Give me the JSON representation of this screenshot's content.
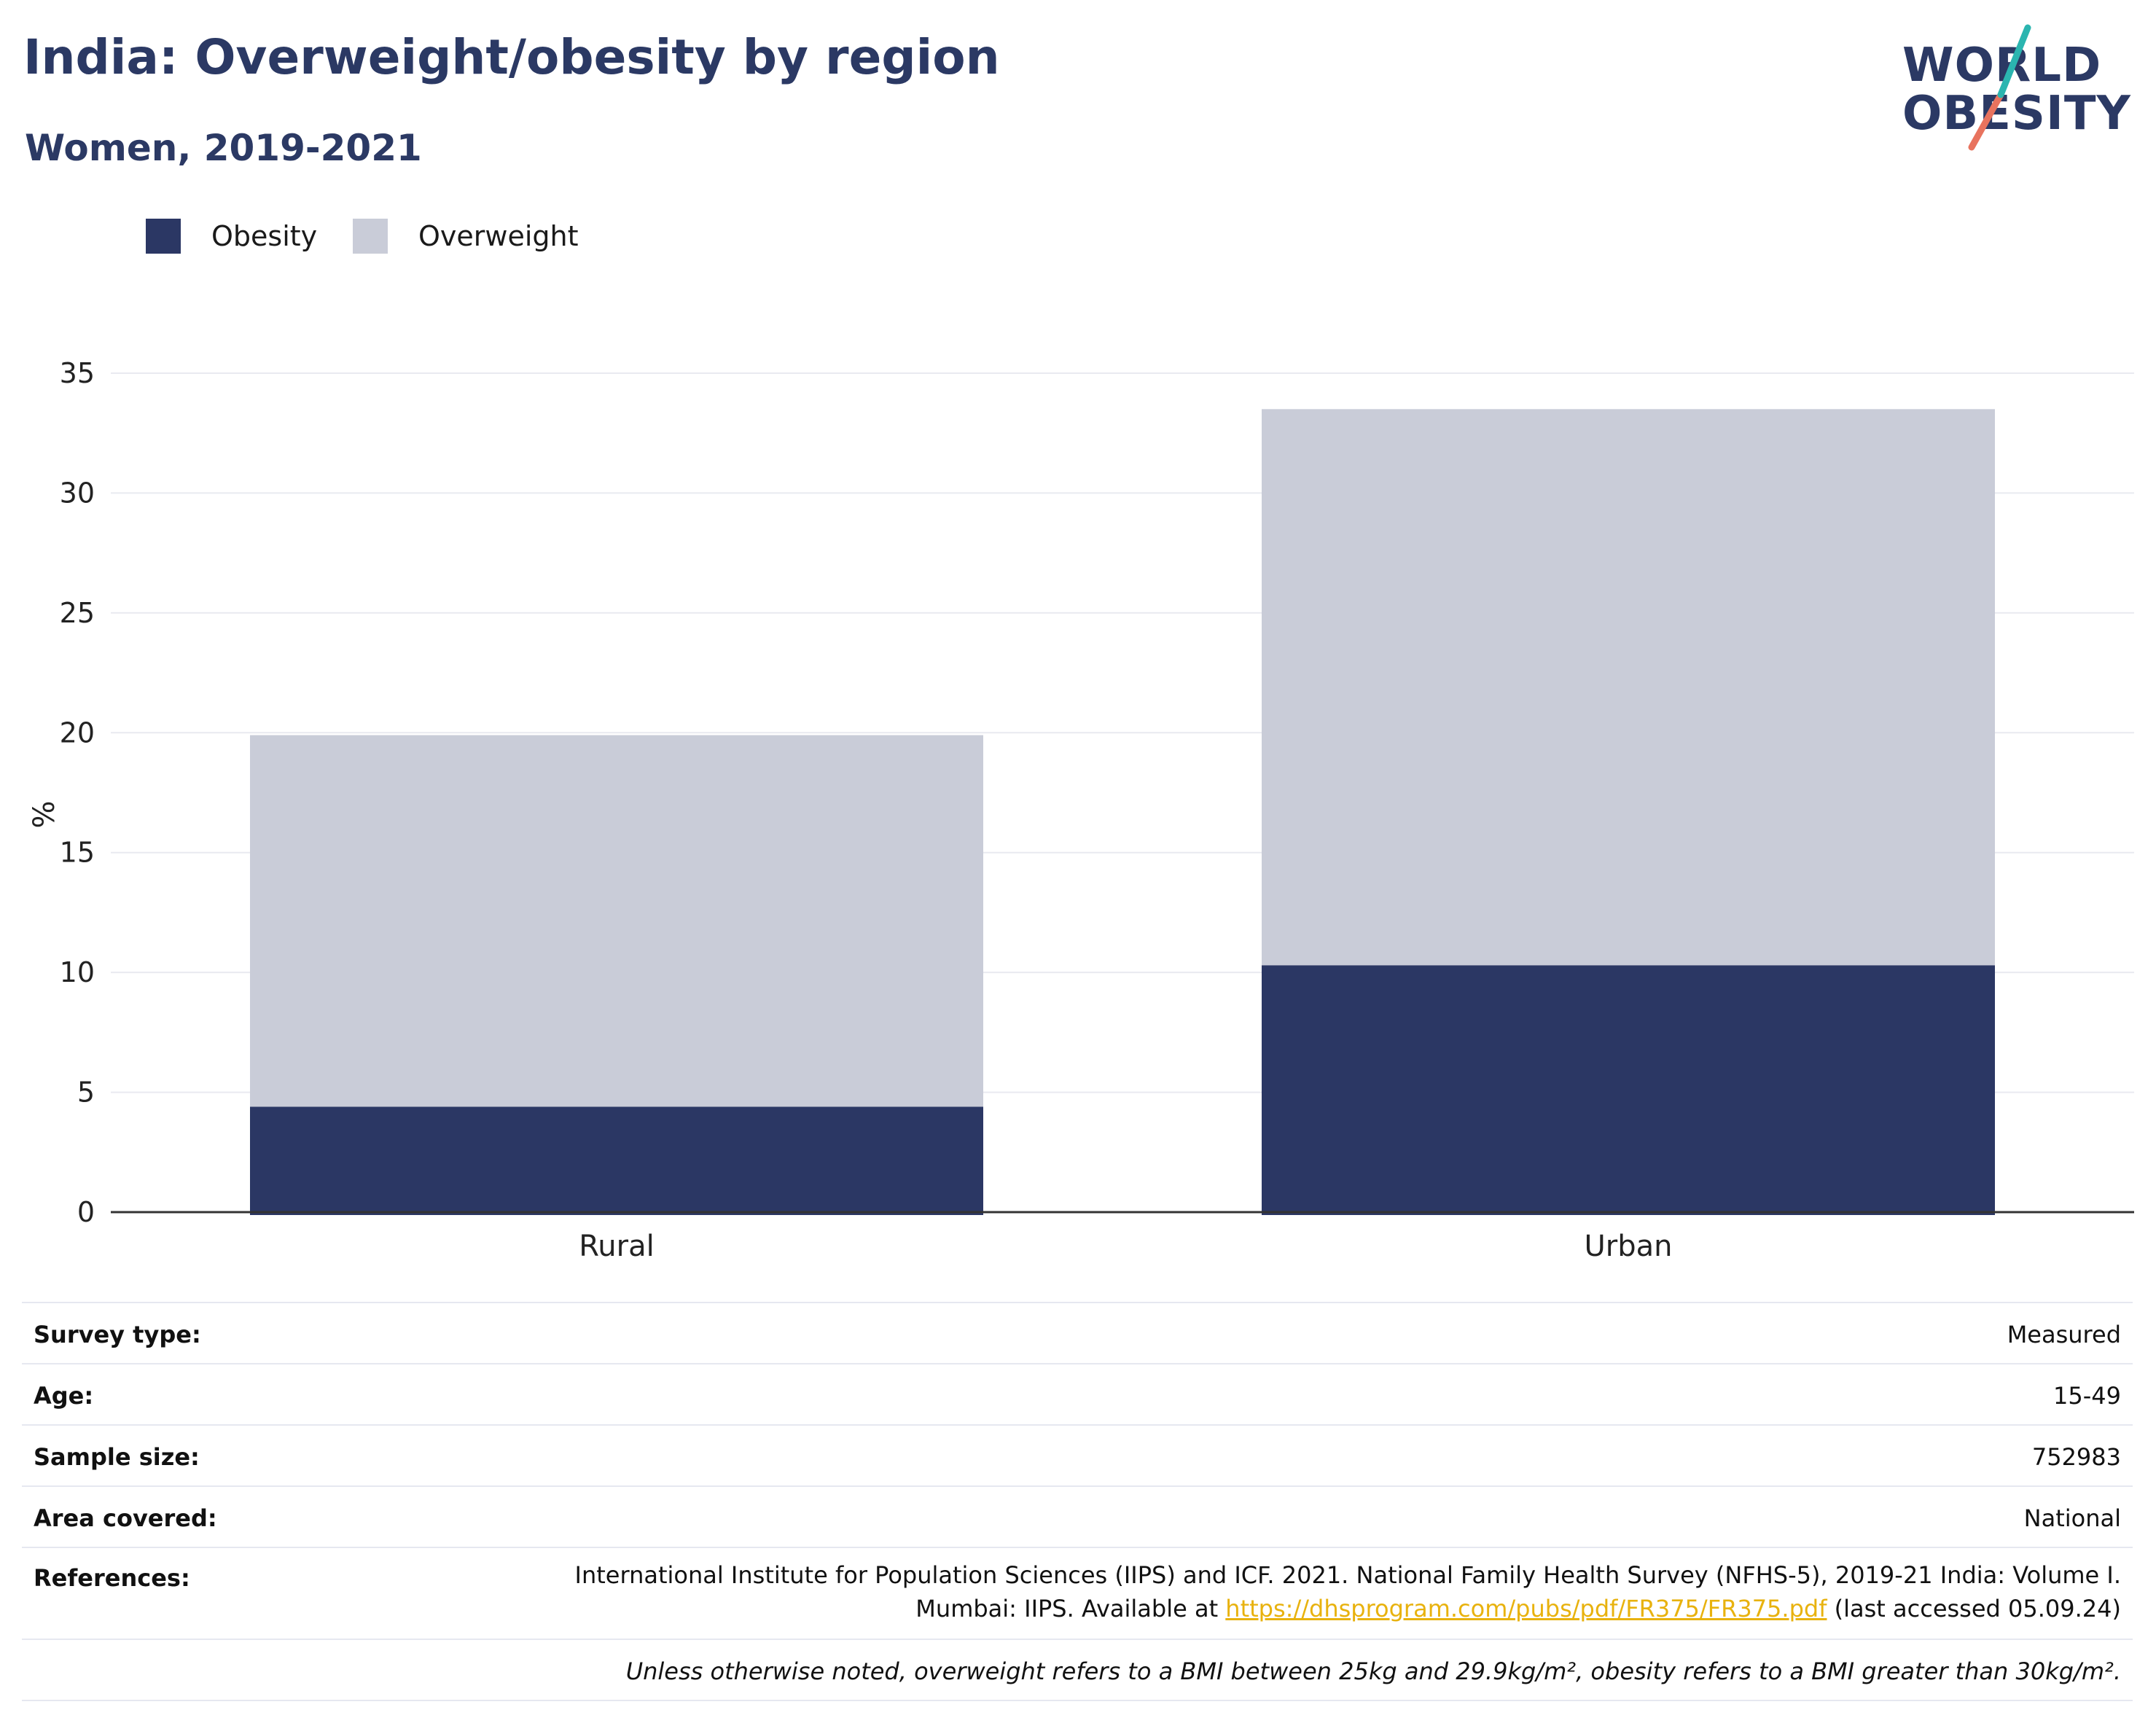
{
  "header": {
    "title": "India: Overweight/obesity by region",
    "subtitle": "Women, 2019-2021"
  },
  "logo": {
    "line1": "WORLD",
    "line2": "OBESITY",
    "icon": "slash-logo-icon"
  },
  "colors": {
    "obesity": "#2b3764",
    "overweight": "#c9ccd8",
    "title": "#2b3964",
    "link": "#e8b20e",
    "grid": "#e9eaf0",
    "axis": "#333333"
  },
  "legend": [
    {
      "label": "Obesity",
      "color": "#2b3764"
    },
    {
      "label": "Overweight",
      "color": "#c9ccd8"
    }
  ],
  "chart_data": {
    "type": "bar",
    "stacked": true,
    "categories": [
      "Rural",
      "Urban"
    ],
    "series": [
      {
        "name": "Obesity",
        "values": [
          4.4,
          10.3
        ]
      },
      {
        "name": "Overweight",
        "values": [
          15.5,
          23.2
        ]
      }
    ],
    "ylabel": "%",
    "ylim": [
      0,
      35
    ],
    "yticks": [
      0,
      5,
      10,
      15,
      20,
      25,
      30,
      35
    ],
    "grid": true,
    "legend_position": "top-left"
  },
  "info": {
    "survey_type": {
      "label": "Survey type:",
      "value": "Measured"
    },
    "age": {
      "label": "Age:",
      "value": "15-49"
    },
    "sample_size": {
      "label": "Sample size:",
      "value": "752983"
    },
    "area_covered": {
      "label": "Area covered:",
      "value": "National"
    },
    "references": {
      "label": "References:",
      "line1": "International Institute for Population Sciences (IIPS) and ICF. 2021. National Family Health Survey (NFHS-5), 2019-21 India: Volume I.",
      "line2_prefix": "Mumbai: IIPS. Available at ",
      "link": "https://dhsprogram.com/pubs/pdf/FR375/FR375.pdf",
      "line2_suffix": " (last accessed 05.09.24)"
    },
    "footnote": "Unless otherwise noted, overweight refers to a BMI between 25kg and 29.9kg/m², obesity refers to a BMI greater than 30kg/m²."
  }
}
